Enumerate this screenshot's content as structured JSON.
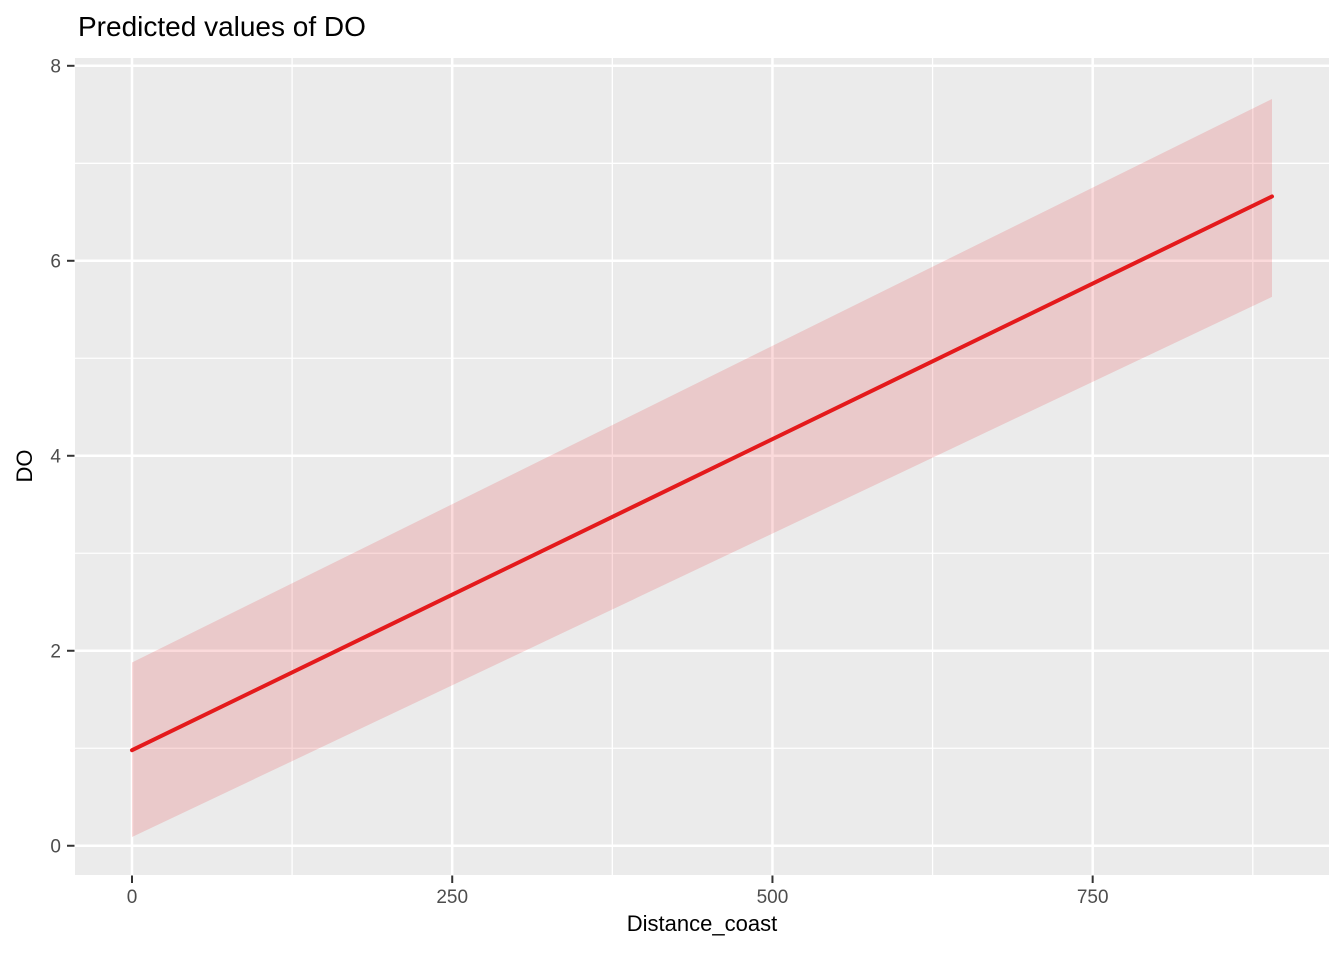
{
  "chart_data": {
    "type": "line",
    "title": "Predicted values of DO",
    "xlabel": "Distance_coast",
    "ylabel": "DO",
    "x_ticks": [
      0,
      250,
      500,
      750
    ],
    "x_minor_ticks": [
      125,
      375,
      625,
      875
    ],
    "y_ticks": [
      0,
      2,
      4,
      6,
      8
    ],
    "y_minor_ticks": [
      1,
      3,
      5,
      7
    ],
    "xlim": [
      -44.5,
      934.5
    ],
    "ylim": [
      -0.3,
      8.08
    ],
    "grid": true,
    "legend": "none",
    "series": [
      {
        "name": "predicted",
        "x": [
          0,
          890
        ],
        "y": [
          0.98,
          6.66
        ],
        "ci_lower": [
          0.09,
          5.63
        ],
        "ci_upper": [
          1.88,
          7.66
        ]
      }
    ],
    "style": {
      "panel_bg": "#EBEBEB",
      "grid_color": "#FFFFFF",
      "line_color": "#E41A1C",
      "ribbon_color": "#E41A1C",
      "ribbon_opacity": 0.16,
      "tick_mark_color": "#333333",
      "tick_label_color": "#4D4D4D"
    }
  }
}
